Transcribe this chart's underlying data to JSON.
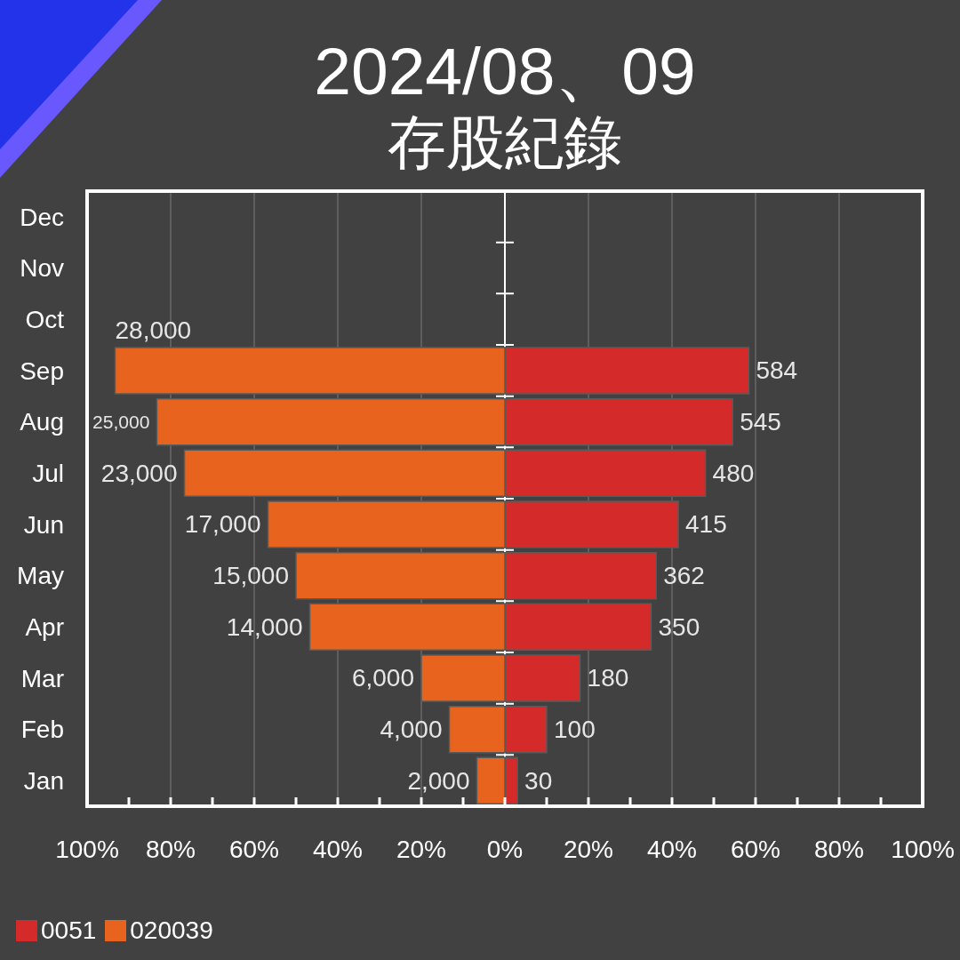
{
  "chart_data": {
    "type": "bar",
    "title": "2024/08、09",
    "subtitle": "存股紀錄",
    "orientation": "horizontal",
    "stacked": true,
    "categories": [
      "Dec",
      "Nov",
      "Oct",
      "Sep",
      "Aug",
      "Jul",
      "Jun",
      "May",
      "Apr",
      "Mar",
      "Feb",
      "Jan"
    ],
    "series": [
      {
        "name": "0051",
        "color": "#d42a2a",
        "values": [
          null,
          null,
          null,
          58.4,
          54.5,
          48,
          41.5,
          36.2,
          35,
          18,
          10,
          3
        ]
      },
      {
        "name": "020039",
        "color": "#e8641e",
        "values": [
          null,
          null,
          null,
          -93.3,
          -83.3,
          -76.7,
          -56.7,
          -50,
          -46.7,
          -20,
          -13.3,
          -6.7
        ]
      }
    ],
    "xlim": [
      -100,
      100
    ],
    "xticks": [
      {
        "value": -100,
        "label": "100%"
      },
      {
        "value": -90,
        "label": null
      },
      {
        "value": -80,
        "label": "80%"
      },
      {
        "value": -70,
        "label": null
      },
      {
        "value": -60,
        "label": "60%"
      },
      {
        "value": -50,
        "label": null
      },
      {
        "value": -40,
        "label": "40%"
      },
      {
        "value": -30,
        "label": null
      },
      {
        "value": -20,
        "label": "20%"
      },
      {
        "value": -10,
        "label": null
      },
      {
        "value": 0,
        "label": "0%"
      },
      {
        "value": 10,
        "label": null
      },
      {
        "value": 20,
        "label": "20%"
      },
      {
        "value": 30,
        "label": null
      },
      {
        "value": 40,
        "label": "40%"
      },
      {
        "value": 50,
        "label": null
      },
      {
        "value": 60,
        "label": "60%"
      },
      {
        "value": 70,
        "label": null
      },
      {
        "value": 80,
        "label": "80%"
      },
      {
        "value": 90,
        "label": null
      },
      {
        "value": 100,
        "label": "100%"
      }
    ],
    "annotations": [
      {
        "text": "28,000",
        "x": -93.3,
        "y": "Sep"
      },
      {
        "text": "584",
        "x": 58.4,
        "y": "Sep"
      },
      {
        "text": "25,000",
        "x": -83.3,
        "y": "Aug"
      },
      {
        "text": "545",
        "x": 54.5,
        "y": "Aug"
      },
      {
        "text": "23,000",
        "x": -76.7,
        "y": "Jul"
      },
      {
        "text": "480",
        "x": 48,
        "y": "Jul"
      },
      {
        "text": "17,000",
        "x": -56.7,
        "y": "Jun"
      },
      {
        "text": "415",
        "x": 41.5,
        "y": "Jun"
      },
      {
        "text": "15,000",
        "x": -50,
        "y": "May"
      },
      {
        "text": "362",
        "x": 36.2,
        "y": "May"
      },
      {
        "text": "14,000",
        "x": -46.7,
        "y": "Apr"
      },
      {
        "text": "350",
        "x": 35,
        "y": "Apr"
      },
      {
        "text": "6,000",
        "x": -20,
        "y": "Mar"
      },
      {
        "text": "180",
        "x": 18,
        "y": "Mar"
      },
      {
        "text": "4,000",
        "x": -13.3,
        "y": "Feb"
      },
      {
        "text": "100",
        "x": 10,
        "y": "Feb"
      },
      {
        "text": "2,000",
        "x": -6.7,
        "y": "Jan"
      },
      {
        "text": "30",
        "x": 3,
        "y": "Jan"
      }
    ],
    "grid": "x",
    "legend": "bottom left"
  }
}
